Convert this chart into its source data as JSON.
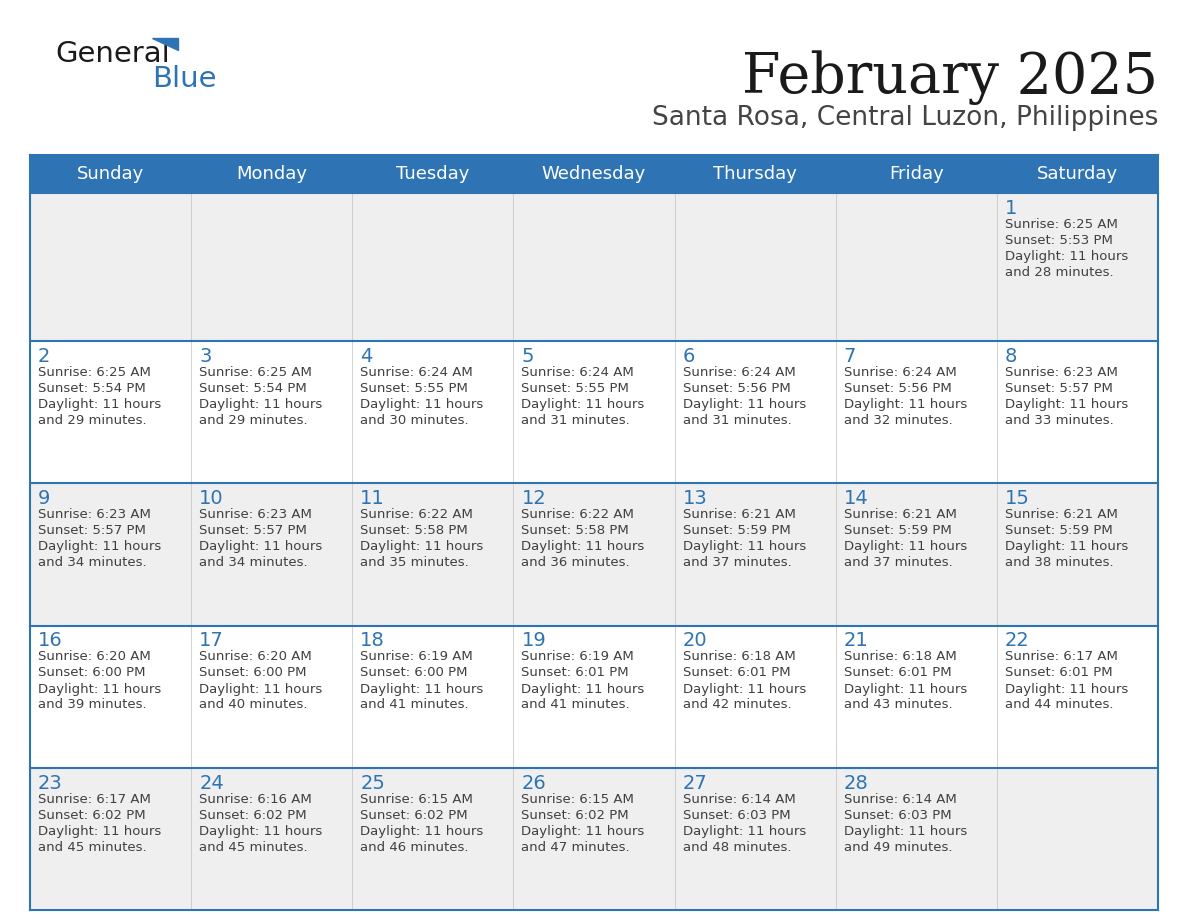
{
  "title": "February 2025",
  "subtitle": "Santa Rosa, Central Luzon, Philippines",
  "header_bg": "#2E74B5",
  "header_text_color": "#FFFFFF",
  "day_headers": [
    "Sunday",
    "Monday",
    "Tuesday",
    "Wednesday",
    "Thursday",
    "Friday",
    "Saturday"
  ],
  "row_bg_odd": "#EFEFEF",
  "row_bg_even": "#FFFFFF",
  "date_text_color": "#2E74B5",
  "info_text_color": "#404040",
  "divider_color": "#2E74B5",
  "logo_general_color": "#1a1a1a",
  "logo_blue_color": "#2E74B5",
  "cal_data": [
    [
      null,
      null,
      null,
      null,
      null,
      null,
      {
        "day": 1,
        "sunrise": "6:25 AM",
        "sunset": "5:53 PM",
        "daylight": "11 hours and 28 minutes."
      }
    ],
    [
      {
        "day": 2,
        "sunrise": "6:25 AM",
        "sunset": "5:54 PM",
        "daylight": "11 hours and 29 minutes."
      },
      {
        "day": 3,
        "sunrise": "6:25 AM",
        "sunset": "5:54 PM",
        "daylight": "11 hours and 29 minutes."
      },
      {
        "day": 4,
        "sunrise": "6:24 AM",
        "sunset": "5:55 PM",
        "daylight": "11 hours and 30 minutes."
      },
      {
        "day": 5,
        "sunrise": "6:24 AM",
        "sunset": "5:55 PM",
        "daylight": "11 hours and 31 minutes."
      },
      {
        "day": 6,
        "sunrise": "6:24 AM",
        "sunset": "5:56 PM",
        "daylight": "11 hours and 31 minutes."
      },
      {
        "day": 7,
        "sunrise": "6:24 AM",
        "sunset": "5:56 PM",
        "daylight": "11 hours and 32 minutes."
      },
      {
        "day": 8,
        "sunrise": "6:23 AM",
        "sunset": "5:57 PM",
        "daylight": "11 hours and 33 minutes."
      }
    ],
    [
      {
        "day": 9,
        "sunrise": "6:23 AM",
        "sunset": "5:57 PM",
        "daylight": "11 hours and 34 minutes."
      },
      {
        "day": 10,
        "sunrise": "6:23 AM",
        "sunset": "5:57 PM",
        "daylight": "11 hours and 34 minutes."
      },
      {
        "day": 11,
        "sunrise": "6:22 AM",
        "sunset": "5:58 PM",
        "daylight": "11 hours and 35 minutes."
      },
      {
        "day": 12,
        "sunrise": "6:22 AM",
        "sunset": "5:58 PM",
        "daylight": "11 hours and 36 minutes."
      },
      {
        "day": 13,
        "sunrise": "6:21 AM",
        "sunset": "5:59 PM",
        "daylight": "11 hours and 37 minutes."
      },
      {
        "day": 14,
        "sunrise": "6:21 AM",
        "sunset": "5:59 PM",
        "daylight": "11 hours and 37 minutes."
      },
      {
        "day": 15,
        "sunrise": "6:21 AM",
        "sunset": "5:59 PM",
        "daylight": "11 hours and 38 minutes."
      }
    ],
    [
      {
        "day": 16,
        "sunrise": "6:20 AM",
        "sunset": "6:00 PM",
        "daylight": "11 hours and 39 minutes."
      },
      {
        "day": 17,
        "sunrise": "6:20 AM",
        "sunset": "6:00 PM",
        "daylight": "11 hours and 40 minutes."
      },
      {
        "day": 18,
        "sunrise": "6:19 AM",
        "sunset": "6:00 PM",
        "daylight": "11 hours and 41 minutes."
      },
      {
        "day": 19,
        "sunrise": "6:19 AM",
        "sunset": "6:01 PM",
        "daylight": "11 hours and 41 minutes."
      },
      {
        "day": 20,
        "sunrise": "6:18 AM",
        "sunset": "6:01 PM",
        "daylight": "11 hours and 42 minutes."
      },
      {
        "day": 21,
        "sunrise": "6:18 AM",
        "sunset": "6:01 PM",
        "daylight": "11 hours and 43 minutes."
      },
      {
        "day": 22,
        "sunrise": "6:17 AM",
        "sunset": "6:01 PM",
        "daylight": "11 hours and 44 minutes."
      }
    ],
    [
      {
        "day": 23,
        "sunrise": "6:17 AM",
        "sunset": "6:02 PM",
        "daylight": "11 hours and 45 minutes."
      },
      {
        "day": 24,
        "sunrise": "6:16 AM",
        "sunset": "6:02 PM",
        "daylight": "11 hours and 45 minutes."
      },
      {
        "day": 25,
        "sunrise": "6:15 AM",
        "sunset": "6:02 PM",
        "daylight": "11 hours and 46 minutes."
      },
      {
        "day": 26,
        "sunrise": "6:15 AM",
        "sunset": "6:02 PM",
        "daylight": "11 hours and 47 minutes."
      },
      {
        "day": 27,
        "sunrise": "6:14 AM",
        "sunset": "6:03 PM",
        "daylight": "11 hours and 48 minutes."
      },
      {
        "day": 28,
        "sunrise": "6:14 AM",
        "sunset": "6:03 PM",
        "daylight": "11 hours and 49 minutes."
      },
      null
    ]
  ],
  "fig_width": 11.88,
  "fig_height": 9.18,
  "dpi": 100
}
